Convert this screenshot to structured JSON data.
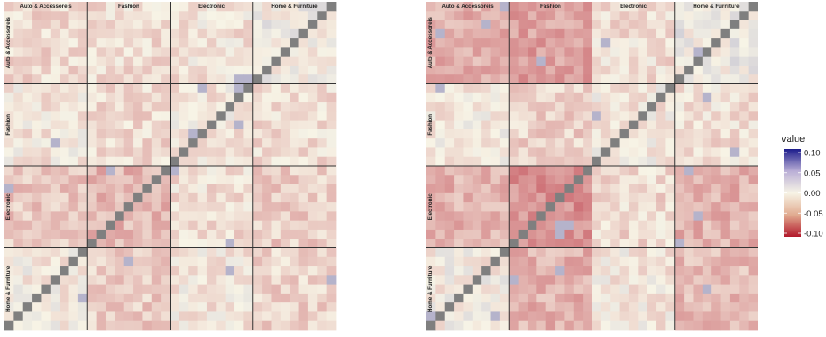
{
  "chart_data": [
    {
      "type": "heatmap",
      "categories": [
        "Auto & Accessoreis",
        "Fashion",
        "Electronic",
        "Home & Furniture"
      ],
      "cells_per_category": 9,
      "diagonal": "anti",
      "block_means": [
        [
          -0.012,
          -0.01,
          -0.008,
          0.0
        ],
        [
          -0.006,
          -0.012,
          -0.006,
          -0.01
        ],
        [
          -0.02,
          -0.028,
          -0.01,
          -0.018
        ],
        [
          -0.003,
          -0.018,
          -0.006,
          -0.015
        ]
      ]
    },
    {
      "type": "heatmap",
      "categories": [
        "Auto & Accessoreis",
        "Fashion",
        "Electronic",
        "Home & Furniture"
      ],
      "cells_per_category": 9,
      "diagonal": "anti",
      "block_means": [
        [
          -0.03,
          -0.038,
          -0.01,
          0.002
        ],
        [
          -0.004,
          -0.016,
          -0.005,
          -0.01
        ],
        [
          -0.03,
          -0.045,
          -0.012,
          -0.03
        ],
        [
          -0.003,
          -0.03,
          -0.006,
          -0.026
        ]
      ]
    }
  ],
  "legend": {
    "title": "value",
    "ticks": [
      "0.10",
      "0.05",
      "0.00",
      "-0.05",
      "-0.10"
    ],
    "scale": [
      -0.1,
      0.1
    ],
    "colors": {
      "low": "#b2182b",
      "mid": "#f7f4e6",
      "high": "#1c1c8c"
    }
  }
}
